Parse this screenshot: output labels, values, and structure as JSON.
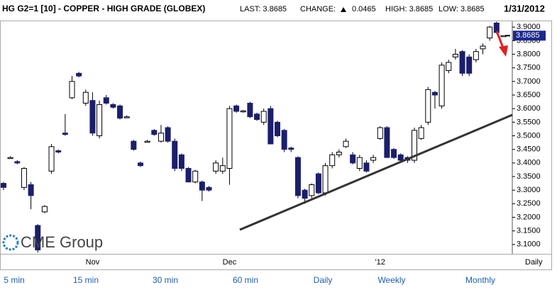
{
  "chart_data": {
    "type": "candlestick",
    "title": "HG G2=1 [10] - COPPER - HIGH GRADE (GLOBEX)",
    "stats": {
      "last": "LAST: 3.8685",
      "change_label": "CHANGE:",
      "change": "0.0465",
      "high": "HIGH: 3.8685",
      "low": "LOW: 3.8685",
      "date": "1/31/2012"
    },
    "logo": "CME Group",
    "period_label": "Daily",
    "categories": [
      null,
      null,
      null,
      null,
      null,
      null,
      null,
      null,
      null,
      null,
      null,
      null,
      null,
      "Nov",
      null,
      null,
      null,
      null,
      null,
      null,
      null,
      null,
      null,
      null,
      null,
      null,
      null,
      null,
      null,
      null,
      null,
      null,
      null,
      "Dec",
      null,
      null,
      null,
      null,
      null,
      null,
      null,
      null,
      null,
      null,
      null,
      null,
      null,
      null,
      null,
      null,
      null,
      null,
      null,
      null,
      null,
      "'12",
      null,
      null,
      null,
      null,
      null,
      null,
      null,
      null,
      null,
      null,
      null,
      null,
      null,
      null,
      null,
      null,
      null,
      null
    ],
    "open": [
      3.325,
      3.42,
      3.405,
      3.31,
      3.32,
      3.17,
      3.22,
      3.37,
      3.445,
      3.51,
      3.64,
      3.73,
      3.62,
      3.63,
      3.5,
      3.64,
      3.615,
      3.61,
      3.57,
      3.48,
      3.4,
      3.48,
      3.52,
      3.48,
      3.53,
      3.48,
      3.43,
      3.38,
      3.33,
      3.33,
      3.31,
      3.37,
      3.37,
      3.38,
      3.61,
      3.59,
      3.62,
      3.58,
      3.55,
      3.6,
      3.55,
      3.52,
      3.455,
      3.42,
      3.3,
      3.28,
      3.36,
      3.29,
      3.39,
      3.43,
      3.46,
      3.43,
      3.38,
      3.4,
      3.41,
      3.49,
      3.53,
      3.45,
      3.43,
      3.42,
      3.41,
      3.49,
      3.55,
      3.66,
      3.61,
      3.74,
      3.79,
      3.81,
      3.79,
      3.78,
      3.82,
      3.86,
      3.915,
      3.8685
    ],
    "high": [
      3.33,
      3.425,
      3.41,
      3.385,
      3.33,
      3.175,
      3.245,
      3.47,
      3.45,
      3.58,
      3.72,
      3.735,
      3.67,
      3.66,
      3.63,
      3.65,
      3.62,
      3.615,
      3.575,
      3.485,
      3.405,
      3.485,
      3.525,
      3.54,
      3.535,
      3.49,
      3.435,
      3.385,
      3.375,
      3.335,
      3.315,
      3.41,
      3.42,
      3.61,
      3.615,
      3.595,
      3.625,
      3.585,
      3.6,
      3.61,
      3.555,
      3.525,
      3.46,
      3.425,
      3.305,
      3.325,
      3.365,
      3.4,
      3.44,
      3.45,
      3.49,
      3.44,
      3.43,
      3.41,
      3.43,
      3.535,
      3.535,
      3.455,
      3.435,
      3.425,
      3.53,
      3.54,
      3.68,
      3.665,
      3.77,
      3.78,
      3.82,
      3.815,
      3.8,
      3.82,
      3.84,
      3.905,
      3.92,
      3.8685
    ],
    "low": [
      3.3,
      3.415,
      3.395,
      3.3,
      3.23,
      3.07,
      3.215,
      3.36,
      3.435,
      3.5,
      3.635,
      3.715,
      3.61,
      3.5,
      3.49,
      3.615,
      3.6,
      3.56,
      3.565,
      3.445,
      3.385,
      3.475,
      3.5,
      3.475,
      3.475,
      3.37,
      3.37,
      3.33,
      3.325,
      3.26,
      3.295,
      3.36,
      3.36,
      3.32,
      3.585,
      3.585,
      3.565,
      3.555,
      3.54,
      3.47,
      3.495,
      3.44,
      3.44,
      3.27,
      3.25,
      3.27,
      3.285,
      3.28,
      3.38,
      3.42,
      3.455,
      3.395,
      3.37,
      3.365,
      3.4,
      3.485,
      3.42,
      3.415,
      3.4,
      3.4,
      3.4,
      3.485,
      3.54,
      3.6,
      3.6,
      3.73,
      3.78,
      3.72,
      3.72,
      3.77,
      3.8,
      3.85,
      3.875,
      3.8685
    ],
    "close": [
      3.31,
      3.42,
      3.4,
      3.38,
      3.28,
      3.08,
      3.24,
      3.46,
      3.44,
      3.505,
      3.7,
      3.72,
      3.66,
      3.51,
      3.615,
      3.62,
      3.605,
      3.565,
      3.57,
      3.45,
      3.39,
      3.48,
      3.505,
      3.51,
      3.48,
      3.38,
      3.38,
      3.33,
      3.37,
      3.3,
      3.3,
      3.4,
      3.39,
      3.6,
      3.59,
      3.592,
      3.57,
      3.56,
      3.59,
      3.47,
      3.5,
      3.45,
      3.45,
      3.28,
      3.27,
      3.32,
      3.29,
      3.39,
      3.43,
      3.44,
      3.48,
      3.4,
      3.42,
      3.37,
      3.42,
      3.53,
      3.42,
      3.42,
      3.41,
      3.41,
      3.52,
      3.53,
      3.67,
      3.65,
      3.76,
      3.77,
      3.8,
      3.73,
      3.73,
      3.81,
      3.83,
      3.9,
      3.88,
      3.8685
    ],
    "up_color": "#ffffff",
    "down_color": "#1b1f6b",
    "ylim": [
      3.063,
      3.924
    ],
    "yticks": [
      {
        "value": 3.1,
        "label": "3.1000"
      },
      {
        "value": 3.15,
        "label": "3.1500"
      },
      {
        "value": 3.2,
        "label": "3.2000"
      },
      {
        "value": 3.25,
        "label": "3.2500"
      },
      {
        "value": 3.3,
        "label": "3.3000"
      },
      {
        "value": 3.35,
        "label": "3.3500"
      },
      {
        "value": 3.4,
        "label": "3.4000"
      },
      {
        "value": 3.45,
        "label": "3.4500"
      },
      {
        "value": 3.5,
        "label": "3.5000"
      },
      {
        "value": 3.55,
        "label": "3.5500"
      },
      {
        "value": 3.6,
        "label": "3.6000"
      },
      {
        "value": 3.65,
        "label": "3.6500"
      },
      {
        "value": 3.7,
        "label": "3.7000"
      },
      {
        "value": 3.75,
        "label": "3.7500"
      },
      {
        "value": 3.8,
        "label": "3.8000"
      },
      {
        "value": 3.85,
        "label": "3.8500"
      },
      {
        "value": 3.9,
        "label": "3.9000"
      }
    ],
    "last_marker": {
      "value": 3.8685,
      "label": "3.8685"
    },
    "marker_color": "#1c2a8c"
  },
  "links": [
    "5 min",
    "15 min",
    "30 min",
    "60 min",
    "Daily",
    "Weekly",
    "Monthly"
  ]
}
